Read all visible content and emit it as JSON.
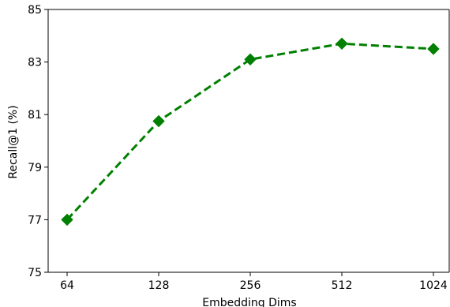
{
  "chart_data": {
    "type": "line",
    "title": "",
    "xlabel": "Embedding Dims",
    "ylabel": "Recall@1 (%)",
    "categories": [
      "64",
      "128",
      "256",
      "512",
      "1024"
    ],
    "x_scale": "categorical",
    "ylim": [
      75,
      85
    ],
    "yticks": [
      "75",
      "77",
      "79",
      "81",
      "83",
      "85"
    ],
    "grid": false,
    "legend": "none",
    "series": [
      {
        "values": [
          77.0,
          80.75,
          83.1,
          83.7,
          83.5
        ],
        "color": "#008000",
        "line_style": "dashed",
        "marker": "diamond"
      }
    ]
  }
}
